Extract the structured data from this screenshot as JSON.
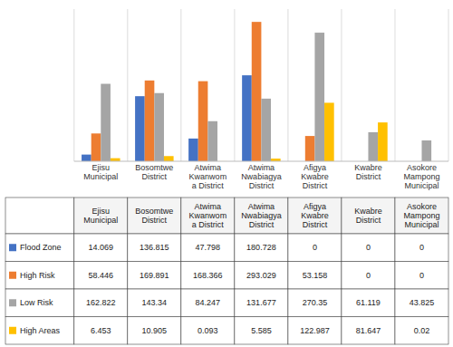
{
  "chart_data": {
    "type": "bar",
    "categories": [
      "Ejisu\nMunicipal",
      "Bosomtwe\nDistrict",
      "Atwima\nKwanwom\na District",
      "Atwima\nNwabiagya\nDistrict",
      "Afigya\nKwabre\nDistrict",
      "Kwabre\nDistrict",
      "Asokore\nMampong\nMunicipal"
    ],
    "series": [
      {
        "name": "Flood Zone",
        "color": "#4472C4",
        "values": [
          14.069,
          136.815,
          47.798,
          180.728,
          0,
          0,
          0
        ]
      },
      {
        "name": "High Risk",
        "color": "#ED7D31",
        "values": [
          58.446,
          169.891,
          168.366,
          293.029,
          53.158,
          0,
          0
        ]
      },
      {
        "name": "Low Risk",
        "color": "#A5A5A5",
        "values": [
          162.822,
          143.34,
          84.247,
          131.677,
          270.35,
          61.119,
          43.825
        ]
      },
      {
        "name": "High Areas",
        "color": "#FFC000",
        "values": [
          6.453,
          10.905,
          0.093,
          5.585,
          122.987,
          81.647,
          0.02
        ]
      }
    ],
    "ylim": [
      0,
      320
    ],
    "tick_labels": "x",
    "grid": true,
    "data_labels": true
  }
}
